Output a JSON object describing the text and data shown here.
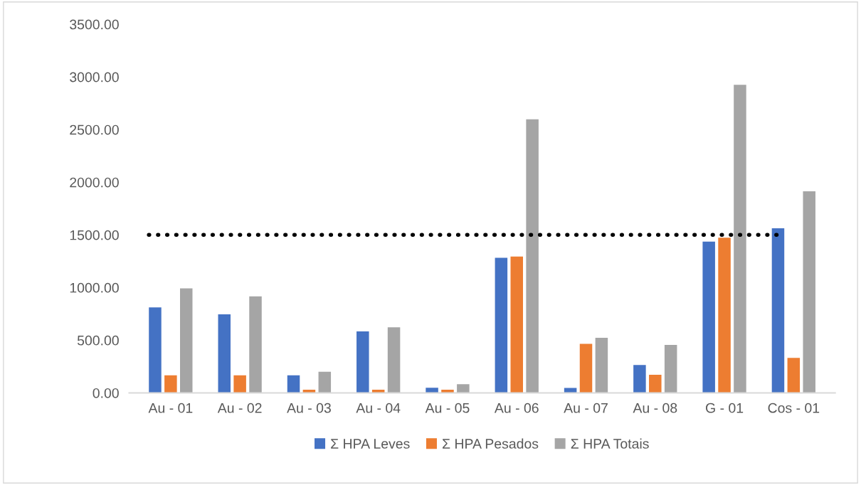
{
  "chart_data": {
    "type": "bar",
    "categories": [
      "Au - 01",
      "Au - 02",
      "Au - 03",
      "Au - 04",
      "Au - 05",
      "Au - 06",
      "Au - 07",
      "Au - 08",
      "G - 01",
      "Cos - 01"
    ],
    "series": [
      {
        "name": "Σ HPA Leves",
        "color": "#4472c4",
        "values": [
          812,
          745,
          166,
          584,
          49,
          1283,
          46,
          265,
          1436,
          1562
        ]
      },
      {
        "name": "Σ HPA Pesados",
        "color": "#ed7d31",
        "values": [
          166,
          166,
          30,
          30,
          30,
          1294,
          466,
          171,
          1473,
          332
        ]
      },
      {
        "name": "Σ HPA Totais",
        "color": "#a5a5a5",
        "values": [
          992,
          916,
          201,
          622,
          83,
          2598,
          522,
          455,
          2925,
          1913
        ]
      }
    ],
    "ylim": [
      0,
      3500
    ],
    "yticks": [
      {
        "value": 0,
        "label": "0.00"
      },
      {
        "value": 500,
        "label": "500.00"
      },
      {
        "value": 1000,
        "label": "1000.00"
      },
      {
        "value": 1500,
        "label": "1500.00"
      },
      {
        "value": 2000,
        "label": "2000.00"
      },
      {
        "value": 2500,
        "label": "2500.00"
      },
      {
        "value": 3000,
        "label": "3000.00"
      },
      {
        "value": 3500,
        "label": "3500.00"
      }
    ],
    "ref_lines": [
      {
        "axis": "y",
        "value": 1500,
        "color": "#000000",
        "line_style": "dotted"
      }
    ],
    "legend": "bottom"
  }
}
